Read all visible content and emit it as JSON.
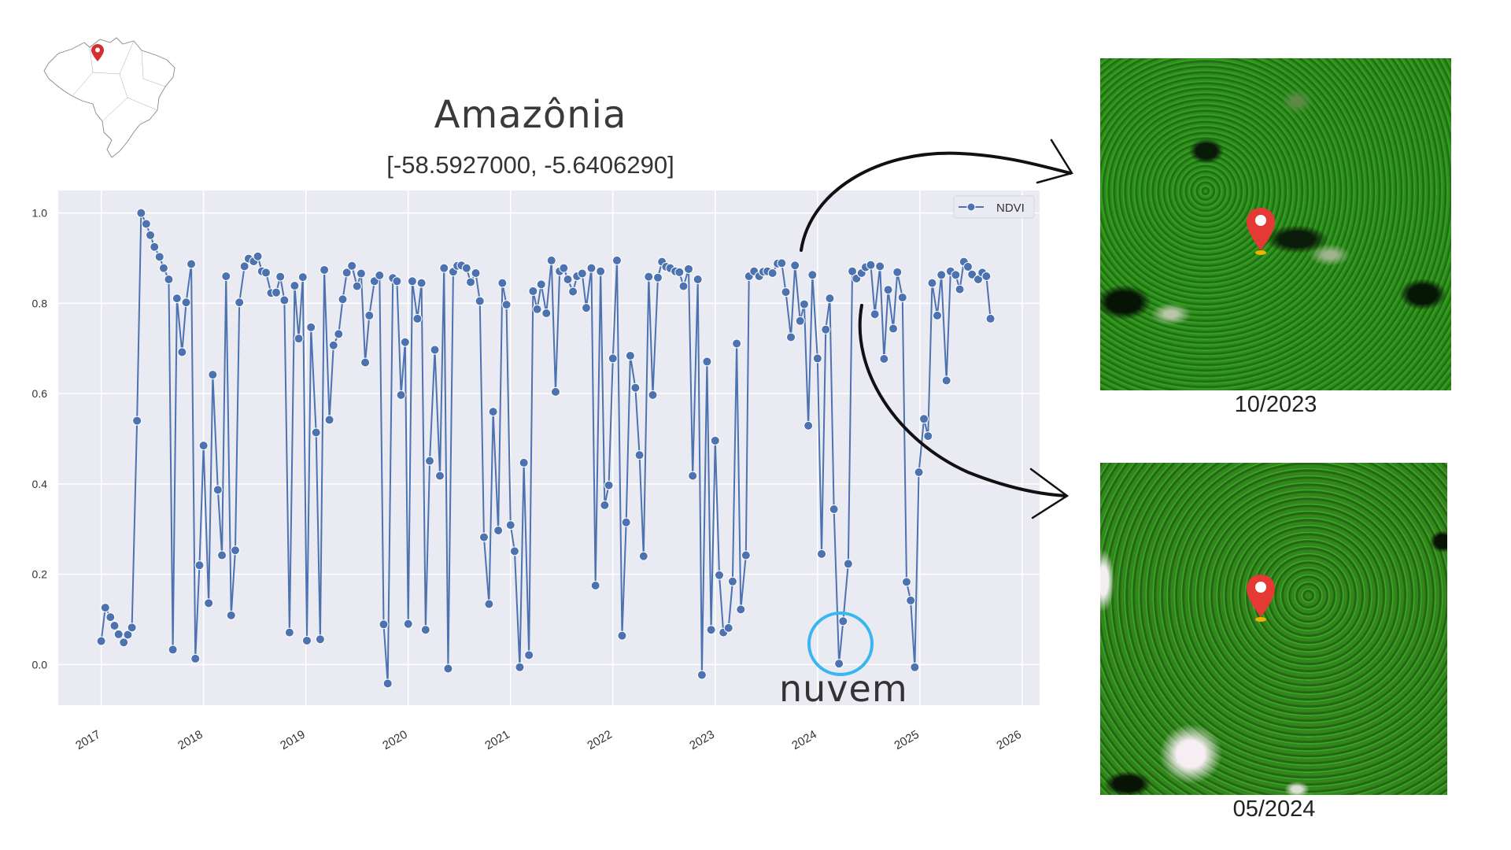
{
  "title": "Amazônia",
  "subtitle": "[-58.5927000, -5.6406290]",
  "annotation": "nuvem",
  "images": [
    {
      "label": "10/2023"
    },
    {
      "label": "05/2024"
    }
  ],
  "colors": {
    "series": "#4c72b0",
    "plot_bg": "#eaeaf2",
    "grid": "#ffffff",
    "circle": "#38b6f0",
    "pin": "#e53935"
  },
  "chart_data": {
    "type": "line",
    "title": "Amazônia",
    "xlabel": "",
    "ylabel": "",
    "legend": {
      "entries": [
        "NDVI"
      ],
      "placement": "top-right"
    },
    "grid": true,
    "xlim": [
      2016.58,
      2026.17
    ],
    "ylim": [
      -0.09,
      1.05
    ],
    "xticks": [
      2017,
      2018,
      2019,
      2020,
      2021,
      2022,
      2023,
      2024,
      2025,
      2026
    ],
    "xtick_labels": [
      "2017",
      "2018",
      "2019",
      "2020",
      "2021",
      "2022",
      "2023",
      "2024",
      "2025",
      "2026"
    ],
    "yticks": [
      0.0,
      0.2,
      0.4,
      0.6,
      0.8,
      1.0
    ],
    "ytick_labels": [
      "0.0",
      "0.2",
      "0.4",
      "0.6",
      "0.8",
      "1.0"
    ],
    "series": [
      {
        "name": "NDVI",
        "points": [
          [
            2017.0,
            0.052
          ],
          [
            2017.04,
            0.126
          ],
          [
            2017.09,
            0.105
          ],
          [
            2017.13,
            0.086
          ],
          [
            2017.17,
            0.067
          ],
          [
            2017.22,
            0.049
          ],
          [
            2017.26,
            0.066
          ],
          [
            2017.3,
            0.082
          ],
          [
            2017.35,
            0.54
          ],
          [
            2017.39,
            1.0
          ],
          [
            2017.44,
            0.976
          ],
          [
            2017.48,
            0.951
          ],
          [
            2017.52,
            0.925
          ],
          [
            2017.57,
            0.903
          ],
          [
            2017.61,
            0.878
          ],
          [
            2017.66,
            0.853
          ],
          [
            2017.7,
            0.033
          ],
          [
            2017.74,
            0.811
          ],
          [
            2017.79,
            0.692
          ],
          [
            2017.83,
            0.802
          ],
          [
            2017.88,
            0.887
          ],
          [
            2017.92,
            0.013
          ],
          [
            2017.96,
            0.22
          ],
          [
            2018.0,
            0.485
          ],
          [
            2018.05,
            0.136
          ],
          [
            2018.09,
            0.642
          ],
          [
            2018.14,
            0.387
          ],
          [
            2018.18,
            0.242
          ],
          [
            2018.22,
            0.86
          ],
          [
            2018.27,
            0.109
          ],
          [
            2018.31,
            0.253
          ],
          [
            2018.35,
            0.802
          ],
          [
            2018.4,
            0.882
          ],
          [
            2018.44,
            0.899
          ],
          [
            2018.49,
            0.893
          ],
          [
            2018.53,
            0.904
          ],
          [
            2018.57,
            0.871
          ],
          [
            2018.61,
            0.868
          ],
          [
            2018.66,
            0.823
          ],
          [
            2018.71,
            0.824
          ],
          [
            2018.75,
            0.859
          ],
          [
            2018.79,
            0.807
          ],
          [
            2018.84,
            0.071
          ],
          [
            2018.89,
            0.839
          ],
          [
            2018.93,
            0.722
          ],
          [
            2018.97,
            0.858
          ],
          [
            2019.01,
            0.053
          ],
          [
            2019.05,
            0.747
          ],
          [
            2019.1,
            0.514
          ],
          [
            2019.14,
            0.056
          ],
          [
            2019.18,
            0.874
          ],
          [
            2019.23,
            0.542
          ],
          [
            2019.27,
            0.707
          ],
          [
            2019.32,
            0.732
          ],
          [
            2019.36,
            0.809
          ],
          [
            2019.4,
            0.868
          ],
          [
            2019.45,
            0.883
          ],
          [
            2019.5,
            0.838
          ],
          [
            2019.54,
            0.866
          ],
          [
            2019.58,
            0.669
          ],
          [
            2019.62,
            0.773
          ],
          [
            2019.67,
            0.849
          ],
          [
            2019.72,
            0.862
          ],
          [
            2019.76,
            0.089
          ],
          [
            2019.8,
            -0.042
          ],
          [
            2019.85,
            0.856
          ],
          [
            2019.89,
            0.849
          ],
          [
            2019.93,
            0.597
          ],
          [
            2019.97,
            0.714
          ],
          [
            2020.0,
            0.09
          ],
          [
            2020.04,
            0.849
          ],
          [
            2020.09,
            0.766
          ],
          [
            2020.13,
            0.845
          ],
          [
            2020.17,
            0.077
          ],
          [
            2020.21,
            0.451
          ],
          [
            2020.26,
            0.697
          ],
          [
            2020.31,
            0.418
          ],
          [
            2020.35,
            0.878
          ],
          [
            2020.39,
            -0.009
          ],
          [
            2020.44,
            0.87
          ],
          [
            2020.48,
            0.883
          ],
          [
            2020.52,
            0.884
          ],
          [
            2020.57,
            0.878
          ],
          [
            2020.61,
            0.847
          ],
          [
            2020.66,
            0.867
          ],
          [
            2020.7,
            0.805
          ],
          [
            2020.74,
            0.282
          ],
          [
            2020.79,
            0.134
          ],
          [
            2020.83,
            0.56
          ],
          [
            2020.88,
            0.297
          ],
          [
            2020.92,
            0.845
          ],
          [
            2020.96,
            0.797
          ],
          [
            2021.0,
            0.309
          ],
          [
            2021.04,
            0.251
          ],
          [
            2021.09,
            -0.006
          ],
          [
            2021.13,
            0.447
          ],
          [
            2021.18,
            0.021
          ],
          [
            2021.22,
            0.827
          ],
          [
            2021.26,
            0.787
          ],
          [
            2021.3,
            0.842
          ],
          [
            2021.35,
            0.778
          ],
          [
            2021.4,
            0.895
          ],
          [
            2021.44,
            0.604
          ],
          [
            2021.48,
            0.871
          ],
          [
            2021.52,
            0.878
          ],
          [
            2021.56,
            0.853
          ],
          [
            2021.61,
            0.826
          ],
          [
            2021.65,
            0.86
          ],
          [
            2021.7,
            0.866
          ],
          [
            2021.74,
            0.79
          ],
          [
            2021.79,
            0.878
          ],
          [
            2021.83,
            0.175
          ],
          [
            2021.88,
            0.871
          ],
          [
            2021.92,
            0.353
          ],
          [
            2021.96,
            0.397
          ],
          [
            2022.0,
            0.678
          ],
          [
            2022.04,
            0.895
          ],
          [
            2022.09,
            0.064
          ],
          [
            2022.13,
            0.315
          ],
          [
            2022.17,
            0.684
          ],
          [
            2022.22,
            0.613
          ],
          [
            2022.26,
            0.464
          ],
          [
            2022.3,
            0.24
          ],
          [
            2022.35,
            0.859
          ],
          [
            2022.39,
            0.597
          ],
          [
            2022.44,
            0.857
          ],
          [
            2022.48,
            0.892
          ],
          [
            2022.52,
            0.881
          ],
          [
            2022.56,
            0.878
          ],
          [
            2022.61,
            0.871
          ],
          [
            2022.65,
            0.869
          ],
          [
            2022.69,
            0.838
          ],
          [
            2022.74,
            0.876
          ],
          [
            2022.78,
            0.418
          ],
          [
            2022.83,
            0.853
          ],
          [
            2022.87,
            -0.023
          ],
          [
            2022.92,
            0.671
          ],
          [
            2022.96,
            0.077
          ],
          [
            2023.0,
            0.496
          ],
          [
            2023.04,
            0.198
          ],
          [
            2023.08,
            0.071
          ],
          [
            2023.13,
            0.081
          ],
          [
            2023.17,
            0.184
          ],
          [
            2023.21,
            0.711
          ],
          [
            2023.25,
            0.122
          ],
          [
            2023.3,
            0.242
          ],
          [
            2023.33,
            0.86
          ],
          [
            2023.38,
            0.871
          ],
          [
            2023.43,
            0.86
          ],
          [
            2023.47,
            0.87
          ],
          [
            2023.51,
            0.871
          ],
          [
            2023.56,
            0.867
          ],
          [
            2023.61,
            0.888
          ],
          [
            2023.65,
            0.889
          ],
          [
            2023.69,
            0.825
          ],
          [
            2023.74,
            0.725
          ],
          [
            2023.78,
            0.884
          ],
          [
            2023.83,
            0.761
          ],
          [
            2023.87,
            0.798
          ],
          [
            2023.91,
            0.529
          ],
          [
            2023.95,
            0.863
          ],
          [
            2024.0,
            0.678
          ],
          [
            2024.04,
            0.245
          ],
          [
            2024.08,
            0.742
          ],
          [
            2024.12,
            0.811
          ],
          [
            2024.16,
            0.344
          ],
          [
            2024.21,
            0.002
          ],
          [
            2024.25,
            0.096
          ],
          [
            2024.3,
            0.223
          ],
          [
            2024.34,
            0.871
          ],
          [
            2024.38,
            0.855
          ],
          [
            2024.43,
            0.867
          ],
          [
            2024.47,
            0.88
          ],
          [
            2024.52,
            0.885
          ],
          [
            2024.56,
            0.776
          ],
          [
            2024.61,
            0.882
          ],
          [
            2024.65,
            0.677
          ],
          [
            2024.69,
            0.83
          ],
          [
            2024.74,
            0.744
          ],
          [
            2024.78,
            0.869
          ],
          [
            2024.83,
            0.813
          ],
          [
            2024.87,
            0.183
          ],
          [
            2024.91,
            0.142
          ],
          [
            2024.95,
            -0.006
          ],
          [
            2024.99,
            0.426
          ],
          [
            2025.04,
            0.544
          ],
          [
            2025.08,
            0.506
          ],
          [
            2025.12,
            0.845
          ],
          [
            2025.17,
            0.773
          ],
          [
            2025.21,
            0.863
          ],
          [
            2025.26,
            0.629
          ],
          [
            2025.3,
            0.871
          ],
          [
            2025.35,
            0.863
          ],
          [
            2025.39,
            0.831
          ],
          [
            2025.43,
            0.892
          ],
          [
            2025.47,
            0.881
          ],
          [
            2025.51,
            0.864
          ],
          [
            2025.57,
            0.853
          ],
          [
            2025.61,
            0.868
          ],
          [
            2025.65,
            0.86
          ],
          [
            2025.69,
            0.766
          ]
        ]
      }
    ]
  }
}
